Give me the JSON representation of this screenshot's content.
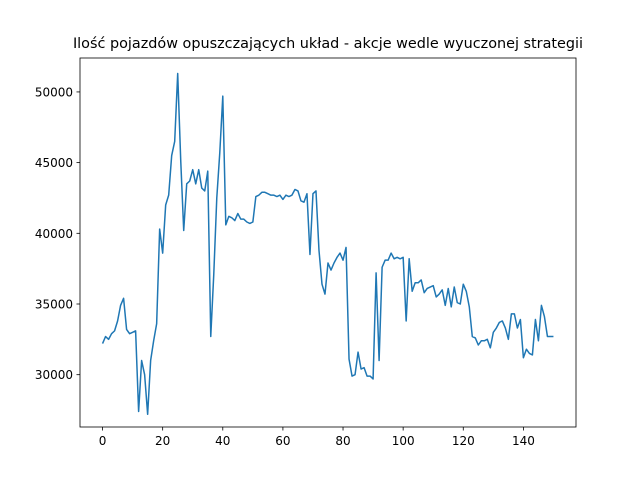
{
  "chart_data": {
    "type": "line",
    "title": "Ilość pojazdów opuszczających układ - akcje wedle wyuczonej strategii",
    "xlabel": "",
    "ylabel": "",
    "xlim": [
      -7.5,
      157.5
    ],
    "ylim": [
      26300,
      52400
    ],
    "xticks": [
      0,
      20,
      40,
      60,
      80,
      100,
      120,
      140
    ],
    "yticks": [
      30000,
      35000,
      40000,
      45000,
      50000
    ],
    "grid": false,
    "line_color": "#1f77b4",
    "series": [
      {
        "x": [
          0,
          1,
          2,
          3,
          4,
          5,
          6,
          7,
          8,
          9,
          10,
          11,
          12,
          13,
          14,
          15,
          16,
          17,
          18,
          19,
          20,
          21,
          22,
          23,
          24,
          25,
          26,
          27,
          28,
          29,
          30,
          31,
          32,
          33,
          34,
          35,
          36,
          37,
          38,
          39,
          40,
          41,
          42,
          43,
          44,
          45,
          46,
          47,
          48,
          49,
          50,
          51,
          52,
          53,
          54,
          55,
          56,
          57,
          58,
          59,
          60,
          61,
          62,
          63,
          64,
          65,
          66,
          67,
          68,
          69,
          70,
          71,
          72,
          73,
          74,
          75,
          76,
          77,
          78,
          79,
          80,
          81,
          82,
          83,
          84,
          85,
          86,
          87,
          88,
          89,
          90,
          91,
          92,
          93,
          94,
          95,
          96,
          97,
          98,
          99,
          100,
          101,
          102,
          103,
          104,
          105,
          106,
          107,
          108,
          109,
          110,
          111,
          112,
          113,
          114,
          115,
          116,
          117,
          118,
          119,
          120,
          121,
          122,
          123,
          124,
          125,
          126,
          127,
          128,
          129,
          130,
          131,
          132,
          133,
          134,
          135,
          136,
          137,
          138,
          139,
          140,
          141,
          142,
          143,
          144,
          145,
          146,
          147,
          148,
          149,
          150
        ],
        "values": [
          32200,
          32700,
          32500,
          32900,
          33100,
          33800,
          34900,
          35400,
          33200,
          32900,
          33000,
          33100,
          27400,
          31000,
          30000,
          27200,
          31000,
          32400,
          33600,
          40300,
          38600,
          42000,
          42700,
          45500,
          46500,
          51300,
          45200,
          40200,
          43500,
          43700,
          44500,
          43500,
          44500,
          43200,
          43000,
          44400,
          32700,
          37100,
          42500,
          45700,
          49700,
          40600,
          41200,
          41100,
          40900,
          41400,
          41000,
          41000,
          40800,
          40700,
          40800,
          42600,
          42700,
          42900,
          42900,
          42800,
          42700,
          42700,
          42600,
          42700,
          42400,
          42700,
          42600,
          42700,
          43100,
          43000,
          42300,
          42200,
          42800,
          38500,
          42800,
          43000,
          38800,
          36400,
          35700,
          37900,
          37400,
          37900,
          38300,
          38600,
          38100,
          39000,
          31100,
          29900,
          30000,
          31600,
          30400,
          30500,
          29900,
          29900,
          29700,
          37200,
          31000,
          37600,
          38100,
          38100,
          38600,
          38200,
          38300,
          38200,
          38300,
          33800,
          38200,
          35900,
          36500,
          36500,
          36700,
          35800,
          36100,
          36200,
          36300,
          35500,
          35700,
          36000,
          34900,
          36100,
          34800,
          36200,
          35100,
          35000,
          36400,
          35900,
          34800,
          32700,
          32600,
          32100,
          32400,
          32400,
          32500,
          31900,
          33000,
          33300,
          33700,
          33800,
          33300,
          32500,
          34300,
          34300,
          33300,
          33900,
          31200,
          31800,
          31500,
          31400,
          33900,
          32400,
          34900,
          34100,
          32700,
          32700,
          32700
        ]
      }
    ]
  }
}
